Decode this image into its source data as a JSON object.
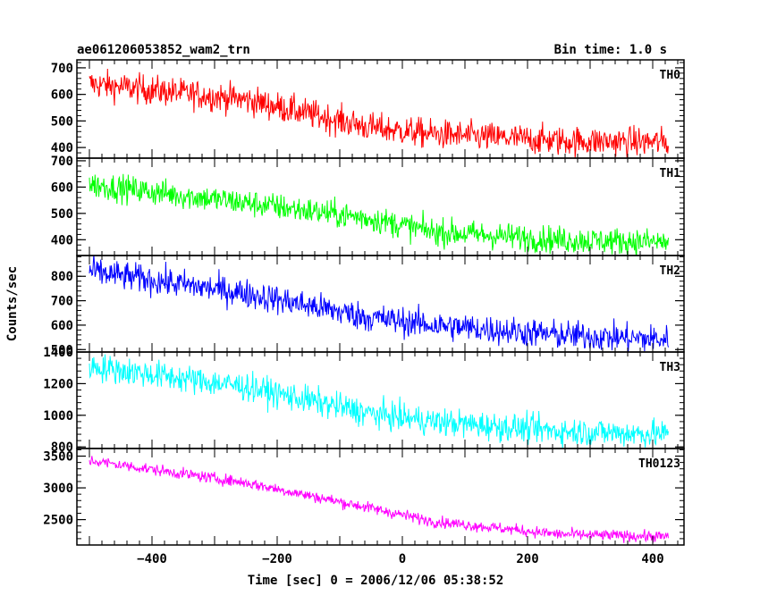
{
  "chart_data": {
    "type": "line",
    "title": "ae061206053852_wam2_trn",
    "subtitle": "Bin time: 1.0 s",
    "xlabel": "Time [sec] 0 = 2006/12/06 05:38:52",
    "ylabel": "Counts/sec",
    "xlim": [
      -520,
      450
    ],
    "x_ticks": [
      -400,
      -200,
      0,
      200,
      400
    ],
    "x_range": [
      -500,
      425
    ],
    "grid": false,
    "panels": [
      {
        "name": "TH0",
        "color": "#ff0000",
        "ylim": [
          360,
          730
        ],
        "y_ticks": [
          400,
          500,
          600,
          700
        ],
        "trend_x": [
          -500,
          -250,
          -50,
          50,
          250,
          425
        ],
        "trend_y": [
          640,
          580,
          475,
          450,
          425,
          420
        ],
        "noise": 28
      },
      {
        "name": "TH1",
        "color": "#00ff00",
        "ylim": [
          340,
          710
        ],
        "y_ticks": [
          400,
          500,
          600,
          700
        ],
        "trend_x": [
          -500,
          -250,
          -50,
          50,
          250,
          425
        ],
        "trend_y": [
          610,
          540,
          480,
          430,
          400,
          390
        ],
        "noise": 26
      },
      {
        "name": "TH2",
        "color": "#0000ff",
        "ylim": [
          490,
          885
        ],
        "y_ticks": [
          500,
          600,
          700,
          800
        ],
        "trend_x": [
          -500,
          -250,
          -50,
          50,
          250,
          425
        ],
        "trend_y": [
          820,
          730,
          630,
          600,
          560,
          540
        ],
        "noise": 30
      },
      {
        "name": "TH3",
        "color": "#00ffff",
        "ylim": [
          790,
          1400
        ],
        "y_ticks": [
          800,
          1000,
          1200,
          1400
        ],
        "trend_x": [
          -500,
          -250,
          -50,
          50,
          250,
          425
        ],
        "trend_y": [
          1310,
          1180,
          1010,
          960,
          900,
          880
        ],
        "noise": 45
      },
      {
        "name": "TH0123",
        "color": "#ff00ff",
        "ylim": [
          2100,
          3620
        ],
        "y_ticks": [
          2500,
          3000,
          3500
        ],
        "trend_x": [
          -500,
          -250,
          -50,
          50,
          250,
          425
        ],
        "trend_y": [
          3430,
          3080,
          2680,
          2470,
          2270,
          2230
        ],
        "noise": 45
      }
    ]
  }
}
